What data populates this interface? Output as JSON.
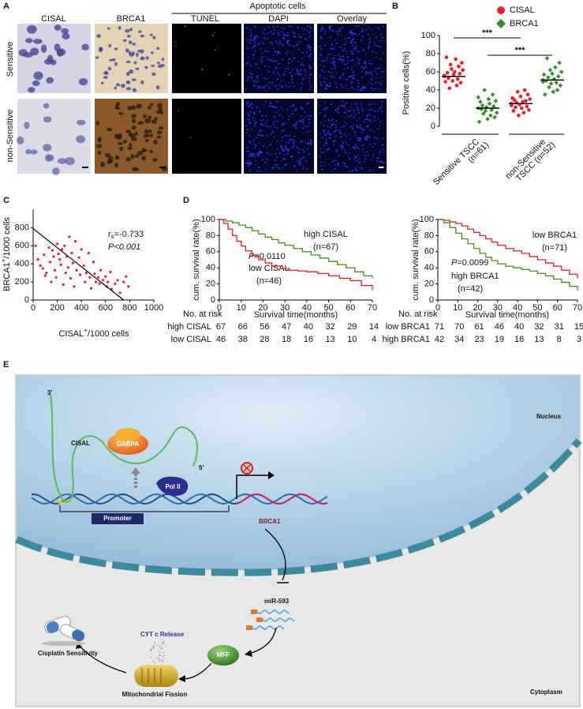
{
  "panel_labels": [
    "A",
    "B",
    "C",
    "D",
    "E"
  ],
  "panel_a": {
    "group_header": "Apoptotic cells",
    "columns": [
      "CISAL",
      "BRCA1",
      "TUNEL",
      "DAPI",
      "Overlay"
    ],
    "rows": [
      "Sensitive",
      "non-Sensitive"
    ]
  },
  "chart_data": [
    {
      "type": "strip",
      "ylabel": "Positive cells(%)",
      "ylim": [
        0,
        100
      ],
      "yticks": [
        0,
        20,
        40,
        60,
        80,
        100
      ],
      "category_lines": [
        [
          "Sensitive TSCC",
          "(n=61)"
        ],
        [
          "non-Sensitive",
          "TSCC (n=52)"
        ]
      ],
      "series": [
        {
          "name": "CISAL",
          "color": "#e8202a",
          "marker": "circle",
          "values": [
            [
              55,
              62,
              70,
              48,
              58,
              66,
              52,
              45,
              74,
              60,
              57,
              50,
              63,
              68,
              42,
              53,
              59,
              76,
              49,
              56
            ],
            [
              25,
              30,
              18,
              35,
              22,
              28,
              40,
              15,
              27,
              20,
              33,
              24,
              12,
              38,
              26,
              21,
              29,
              17,
              31,
              23
            ]
          ],
          "medians": [
            55,
            25
          ]
        },
        {
          "name": "BRCA1",
          "color": "#3a8a2e",
          "marker": "diamond",
          "values": [
            [
              20,
              15,
              28,
              10,
              22,
              35,
              18,
              12,
              25,
              30,
              8,
              21,
              17,
              40,
              14,
              23,
              19,
              27,
              5,
              32
            ],
            [
              51,
              60,
              45,
              70,
              55,
              40,
              48,
              65,
              52,
              38,
              58,
              47,
              62,
              43,
              54,
              75,
              50,
              35,
              57,
              49
            ]
          ],
          "medians": [
            20,
            51
          ]
        }
      ],
      "annotations": [
        "***",
        "***"
      ]
    },
    {
      "type": "scatter",
      "ylabel": {
        "text": "BRCA1",
        "sup": "+",
        "rest": "/1000 cells"
      },
      "xlabel": {
        "text": "CISAL",
        "sup": "+",
        "rest": "/1000 cells"
      },
      "xlim": [
        0,
        1000
      ],
      "ylim": [
        0,
        1000
      ],
      "xticks": [
        0,
        200,
        400,
        600,
        800,
        1000
      ],
      "yticks": [
        0,
        200,
        400,
        600,
        800
      ],
      "color": "#e8202a",
      "x": [
        20,
        40,
        60,
        80,
        90,
        100,
        110,
        130,
        140,
        150,
        160,
        170,
        180,
        190,
        200,
        210,
        220,
        230,
        240,
        250,
        260,
        270,
        280,
        290,
        300,
        310,
        320,
        330,
        340,
        350,
        360,
        380,
        390,
        400,
        420,
        430,
        440,
        460,
        470,
        480,
        500,
        510,
        520,
        540,
        550,
        560,
        580,
        600,
        610,
        620,
        640,
        650,
        680,
        700,
        720,
        750,
        770,
        790
      ],
      "values": [
        600,
        450,
        380,
        350,
        500,
        270,
        300,
        580,
        420,
        200,
        550,
        480,
        330,
        250,
        620,
        510,
        450,
        390,
        560,
        170,
        600,
        300,
        480,
        360,
        700,
        240,
        520,
        410,
        150,
        650,
        330,
        470,
        280,
        560,
        380,
        200,
        300,
        520,
        250,
        130,
        420,
        290,
        200,
        250,
        180,
        330,
        220,
        260,
        150,
        200,
        310,
        120,
        180,
        220,
        80,
        200,
        260,
        150
      ],
      "fit_line": {
        "x": [
          0,
          750
        ],
        "values": [
          790,
          0
        ]
      },
      "stat": {
        "symbol": "r",
        "subscript": "s",
        "value": "=-0.733"
      },
      "p_value": "P<0.001"
    },
    {
      "type": "survival",
      "ylabel": "cum. survival rate(%)",
      "xlabel": "Survival time(months)",
      "xlim": [
        0,
        70
      ],
      "ylim": [
        0,
        100
      ],
      "xticks": [
        0,
        10,
        20,
        30,
        40,
        50,
        60,
        70
      ],
      "yticks": [
        0,
        20,
        40,
        60,
        80,
        100
      ],
      "series": [
        {
          "name": "high CISAL",
          "n": "(n=67)",
          "color": "#4a8a1e",
          "x": [
            0,
            3,
            6,
            9,
            12,
            15,
            18,
            21,
            24,
            27,
            30,
            34,
            38,
            42,
            46,
            50,
            54,
            58,
            62,
            66,
            70
          ],
          "values": [
            100,
            98,
            96,
            93,
            90,
            86,
            82,
            78,
            75,
            71,
            68,
            64,
            60,
            56,
            52,
            48,
            44,
            40,
            35,
            30,
            27
          ]
        },
        {
          "name": "low CISAL",
          "n": "(n=46)",
          "color": "#e0201c",
          "x": [
            0,
            2,
            4,
            6,
            8,
            10,
            12,
            15,
            18,
            21,
            24,
            28,
            32,
            36,
            40,
            45,
            50,
            55,
            60,
            65,
            70
          ],
          "values": [
            100,
            95,
            88,
            80,
            73,
            67,
            61,
            55,
            50,
            46,
            42,
            39,
            37,
            36,
            35,
            33,
            30,
            27,
            24,
            18,
            12
          ]
        }
      ],
      "p_value": {
        "symbol": "P",
        "text": "=0.0110"
      },
      "risk_table": {
        "title": "No. at risk",
        "rows": [
          {
            "label": "high CISAL",
            "counts": [
              67,
              66,
              56,
              47,
              40,
              32,
              29,
              14
            ]
          },
          {
            "label": "low CISAL",
            "counts": [
              46,
              38,
              28,
              18,
              16,
              13,
              10,
              4
            ]
          }
        ]
      }
    },
    {
      "type": "survival",
      "ylabel": "cum. survival rate(%)",
      "xlabel": "Survival time(months)",
      "xlim": [
        0,
        70
      ],
      "ylim": [
        0,
        100
      ],
      "xticks": [
        0,
        10,
        20,
        30,
        40,
        50,
        60,
        70
      ],
      "yticks": [
        0,
        20,
        40,
        60,
        80,
        100
      ],
      "series": [
        {
          "name": "low BRCA1",
          "n": "(n=71)",
          "color": "#e0201c",
          "x": [
            0,
            3,
            6,
            9,
            12,
            15,
            18,
            21,
            24,
            27,
            30,
            34,
            38,
            42,
            46,
            50,
            54,
            58,
            62,
            66,
            70
          ],
          "values": [
            100,
            99,
            97,
            95,
            92,
            88,
            84,
            80,
            76,
            72,
            68,
            64,
            61,
            58,
            54,
            50,
            46,
            42,
            37,
            32,
            27
          ]
        },
        {
          "name": "high BRCA1",
          "n": "(n=42)",
          "color": "#4a8a1e",
          "x": [
            0,
            3,
            6,
            9,
            12,
            15,
            18,
            21,
            24,
            27,
            30,
            34,
            38,
            42,
            46,
            50,
            54,
            58,
            62,
            66,
            70
          ],
          "values": [
            100,
            96,
            90,
            83,
            76,
            70,
            64,
            58,
            53,
            49,
            45,
            42,
            40,
            38,
            36,
            33,
            30,
            26,
            22,
            17,
            12
          ]
        }
      ],
      "p_value": {
        "symbol": "P",
        "text": "=0.0099"
      },
      "risk_table": {
        "title": "No. at risk",
        "rows": [
          {
            "label": "low BRCA1",
            "counts": [
              71,
              70,
              61,
              46,
              40,
              32,
              31,
              15
            ]
          },
          {
            "label": "high BRCA1",
            "counts": [
              42,
              34,
              23,
              19,
              16,
              13,
              8,
              3
            ]
          }
        ]
      }
    }
  ],
  "panel_e": {
    "nucleus": "Nucleus",
    "cytoplasm": "Cytoplasm",
    "three_prime": "3'",
    "five_prime": "5'",
    "cisal": "CISAL",
    "gabpa": "GABPA",
    "pol2": "Pol II",
    "promoter": "Promoter",
    "brca1": "BRCA1",
    "mir": "miR-593",
    "mff": "MFF",
    "cytc": "CYT c",
    "release": "Release",
    "cisplatin": "Cisplatin Sensitivity",
    "fission": "Mitochondrial Fission"
  }
}
